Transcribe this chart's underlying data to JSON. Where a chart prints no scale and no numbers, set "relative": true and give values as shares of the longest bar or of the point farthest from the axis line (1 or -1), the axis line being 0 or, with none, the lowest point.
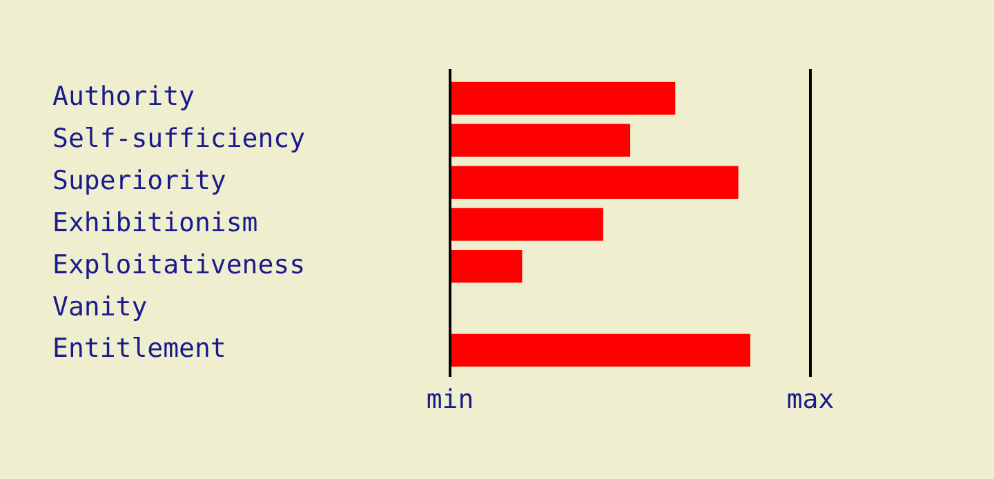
{
  "chart_data": {
    "type": "bar",
    "orientation": "horizontal",
    "relative": true,
    "categories": [
      "Authority",
      "Self-sufficiency",
      "Superiority",
      "Exhibitionism",
      "Exploitativeness",
      "Vanity",
      "Entitlement"
    ],
    "values": [
      0.75,
      0.6,
      0.96,
      0.51,
      0.24,
      0,
      1
    ],
    "color": "#ff0000",
    "ref_lines": [
      {
        "axis": "x",
        "value": 0,
        "label": "min",
        "color": "#000000"
      },
      {
        "axis": "x",
        "value": 1.2,
        "label": "max",
        "color": "#000000"
      }
    ],
    "legend": false
  }
}
